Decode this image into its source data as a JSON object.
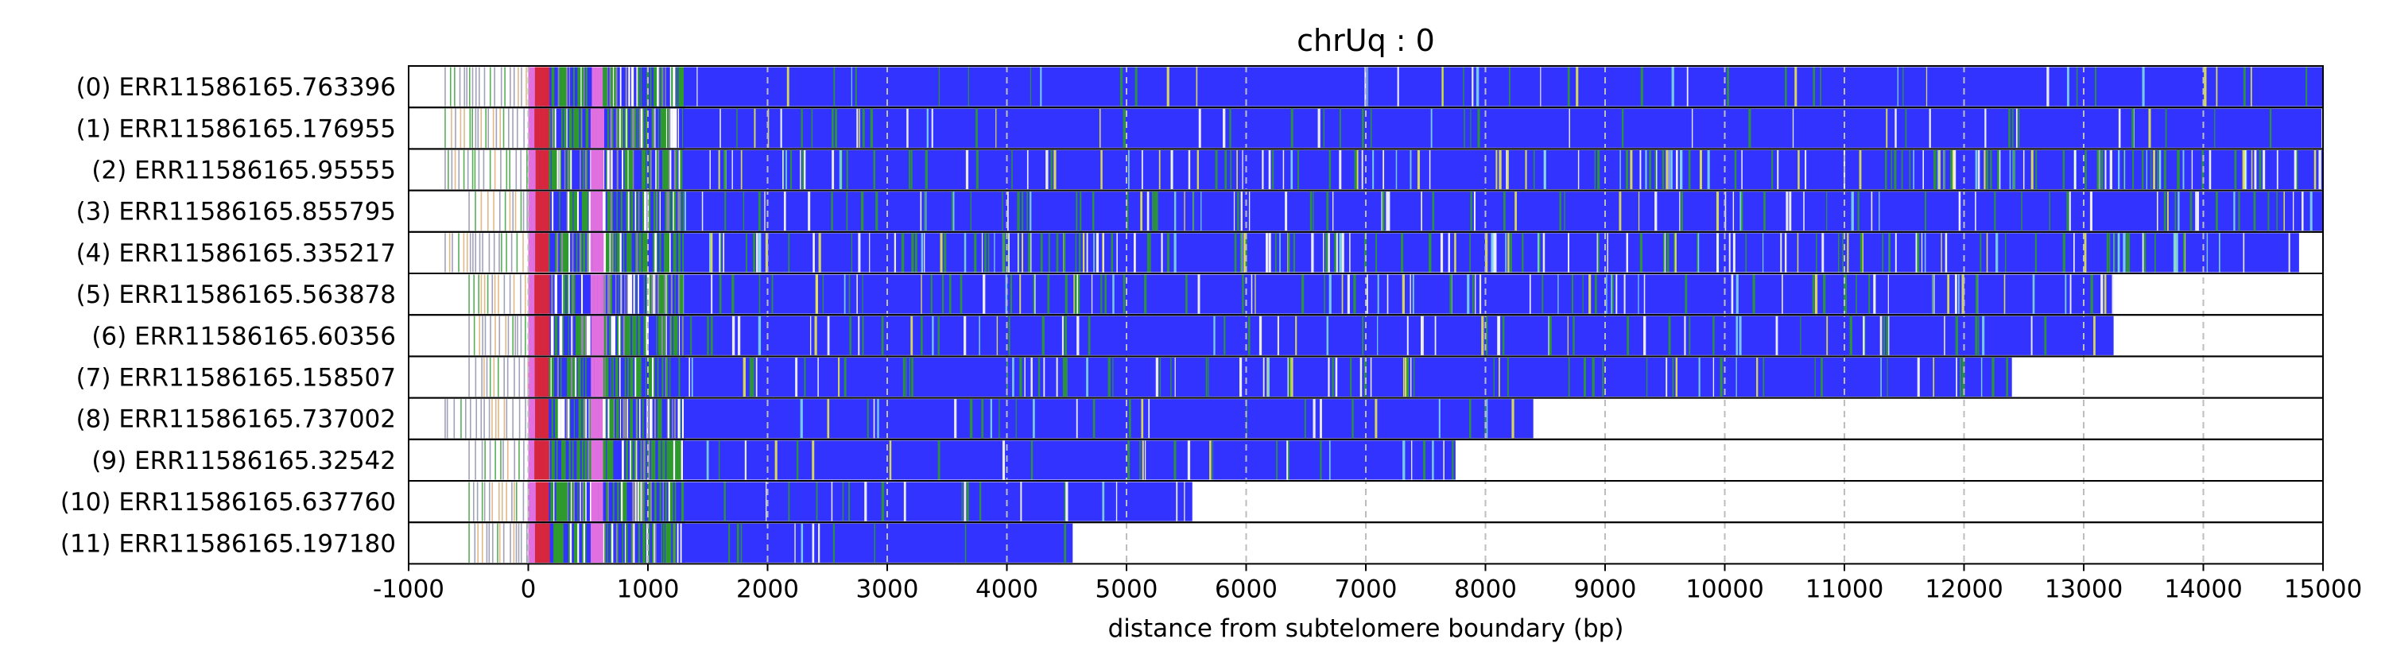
{
  "chart_data": {
    "type": "heatmap",
    "title": "chrUq : 0",
    "xlabel": "distance from subtelomere boundary (bp)",
    "ylabel": "",
    "xlim": [
      -1000,
      15000
    ],
    "xticks": [
      -1000,
      0,
      1000,
      2000,
      3000,
      4000,
      5000,
      6000,
      7000,
      8000,
      9000,
      10000,
      11000,
      12000,
      13000,
      14000,
      15000
    ],
    "xtick_labels": [
      "-1000",
      "0",
      "1000",
      "2000",
      "3000",
      "4000",
      "5000",
      "6000",
      "7000",
      "8000",
      "9000",
      "10000",
      "11000",
      "12000",
      "13000",
      "14000",
      "15000"
    ],
    "grid": "vertical dashed at x ticks",
    "colors": {
      "main": "#3333ff",
      "variant_green": "#2e9a2e",
      "variant_yellow": "#e8e84a",
      "variant_white": "#ffffff",
      "variant_cyan": "#7fd8e8",
      "subtel_red": "#d6273f",
      "subtel_magenta": "#e070e0",
      "subtel_grey": "#8a8aa8"
    },
    "reads": [
      {
        "label": "(0) ERR11586165.763396",
        "start": -700,
        "end": 15000,
        "density": 0.15
      },
      {
        "label": "(1) ERR11586165.176955",
        "start": -700,
        "end": 15000,
        "density": 0.18
      },
      {
        "label": "(2) ERR11586165.95555",
        "start": -700,
        "end": 15000,
        "density": 0.55
      },
      {
        "label": "(3) ERR11586165.855795",
        "start": -500,
        "end": 15000,
        "density": 0.35
      },
      {
        "label": "(4) ERR11586165.335217",
        "start": -700,
        "end": 14800,
        "density": 0.6
      },
      {
        "label": "(5) ERR11586165.563878",
        "start": -500,
        "end": 13250,
        "density": 0.4
      },
      {
        "label": "(6) ERR11586165.60356",
        "start": -500,
        "end": 13250,
        "density": 0.28
      },
      {
        "label": "(7) ERR11586165.158507",
        "start": -500,
        "end": 12400,
        "density": 0.35
      },
      {
        "label": "(8) ERR11586165.737002",
        "start": -700,
        "end": 8400,
        "density": 0.18
      },
      {
        "label": "(9) ERR11586165.32542",
        "start": -500,
        "end": 7750,
        "density": 0.2
      },
      {
        "label": "(10) ERR11586165.637760",
        "start": -500,
        "end": 5550,
        "density": 0.22
      },
      {
        "label": "(11) ERR11586165.197180",
        "start": -500,
        "end": 4550,
        "density": 0.15
      }
    ]
  }
}
